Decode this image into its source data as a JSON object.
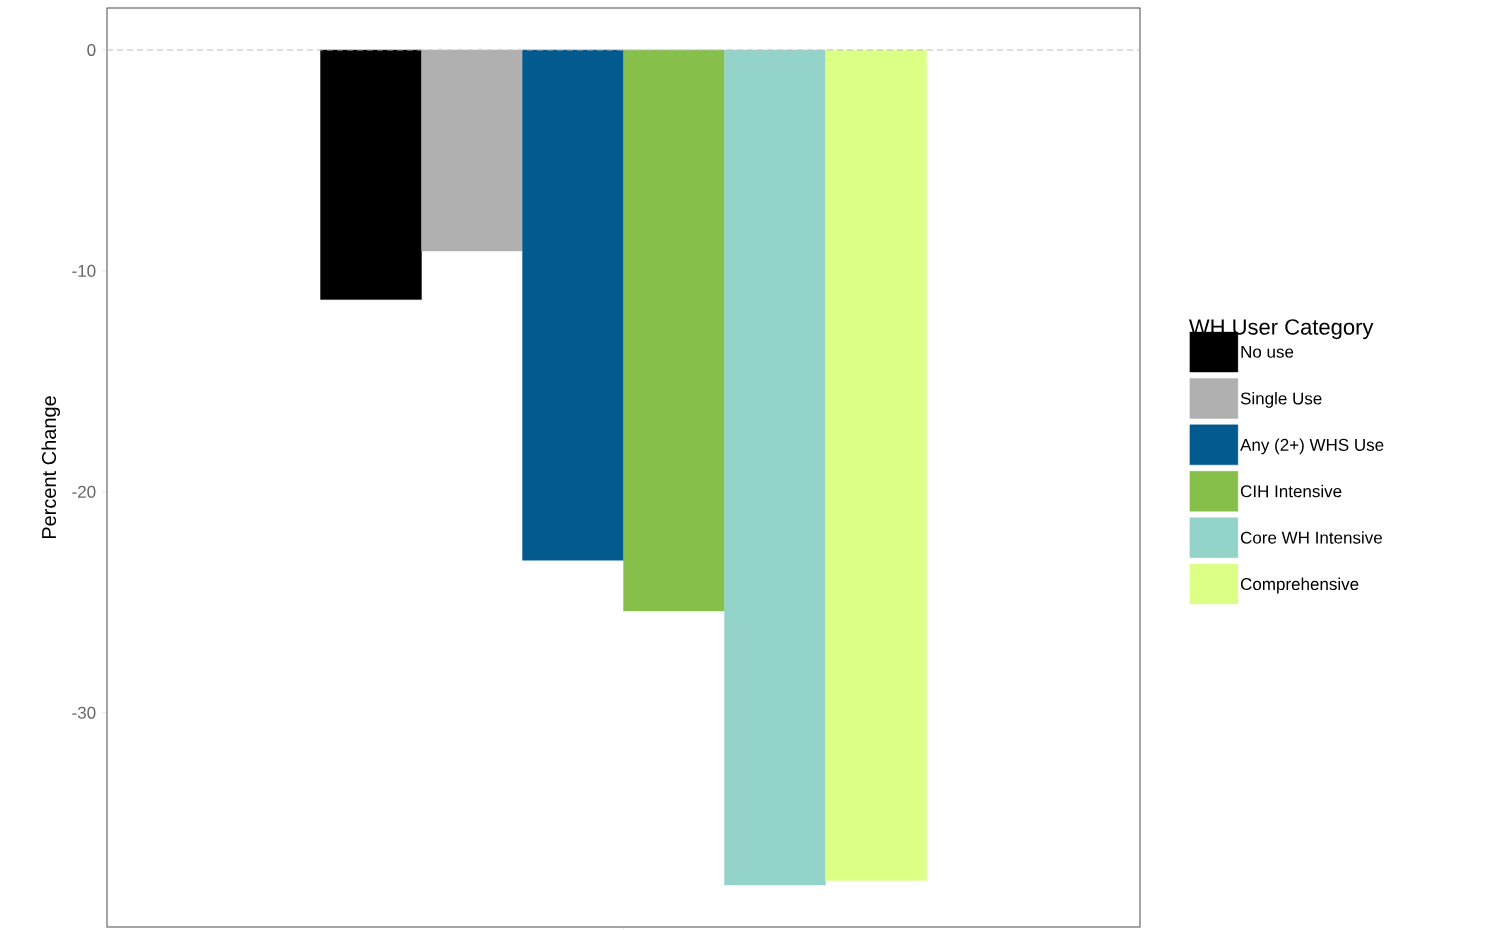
{
  "chart_data": {
    "type": "bar",
    "ylabel": "Percent Change",
    "legend_title": "WH User Category",
    "categories": [
      null
    ],
    "series": [
      {
        "name": "No use",
        "color": "#000000",
        "values": [
          -11.3
        ]
      },
      {
        "name": "Single Use",
        "color": "#b0b0b0",
        "values": [
          -9.1
        ]
      },
      {
        "name": "Any (2+) WHS Use",
        "color": "#035a8f",
        "values": [
          -23.1
        ]
      },
      {
        "name": "CIH Intensive",
        "color": "#86bf4a",
        "values": [
          -25.4
        ]
      },
      {
        "name": "Core WH Intensive",
        "color": "#93d3c9",
        "values": [
          -37.8
        ]
      },
      {
        "name": "Comprehensive",
        "color": "#dcff86",
        "values": [
          -37.6
        ]
      }
    ],
    "ylim": [
      -39.7,
      1.9
    ],
    "yticks": [
      0,
      -10,
      -20,
      -30
    ],
    "legend": "right",
    "ref_lines": [
      {
        "axis": "y",
        "value": 0,
        "color": "#bbbbbb",
        "line_style": "dashed"
      }
    ]
  }
}
